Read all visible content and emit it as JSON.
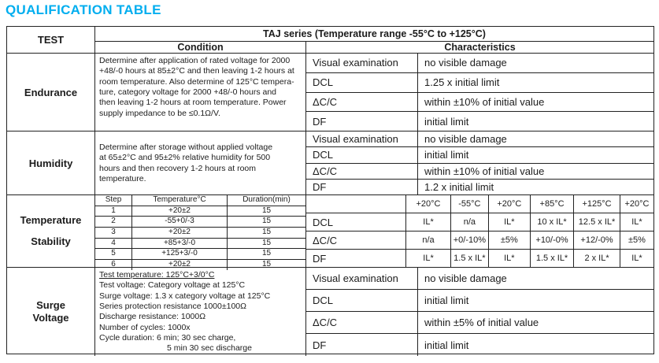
{
  "colors": {
    "accent_title": "#00AEEF",
    "table_border": "#222222"
  },
  "title": "QUALIFICATION TABLE",
  "header": {
    "test": "TEST",
    "series": "TAJ series (Temperature range -55°C to +125°C)",
    "condition": "Condition",
    "characteristics": "Characteristics"
  },
  "endurance": {
    "name": "Endurance",
    "cond": [
      "Determine after application of rated voltage for 2000",
      "+48/-0 hours at 85±2°C and then leaving 1-2 hours at",
      "room temperature. Also determine of 125°C tempera-",
      "ture, category voltage for 2000 +48/-0 hours and",
      "then leaving 1-2 hours at room temperature. Power",
      "supply impedance to be ≤0.1Ω/V."
    ],
    "rows": [
      {
        "label": "Visual examination",
        "value": "no visible damage"
      },
      {
        "label": "DCL",
        "value": "1.25 x initial limit"
      },
      {
        "label": "ΔC/C",
        "value": "within ±10% of initial value"
      },
      {
        "label": "DF",
        "value": "initial limit"
      }
    ]
  },
  "humidity": {
    "name": "Humidity",
    "cond": [
      "Determine after storage without applied voltage",
      "at 65±2°C and 95±2% relative humidity for 500",
      "hours and then recovery 1-2 hours at room",
      "temperature."
    ],
    "rows": [
      {
        "label": "Visual examination",
        "value": "no visible damage"
      },
      {
        "label": "DCL",
        "value": "initial limit"
      },
      {
        "label": "ΔC/C",
        "value": "within ±10% of initial value"
      },
      {
        "label": "DF",
        "value": "1.2 x initial limit"
      }
    ]
  },
  "tempstab": {
    "name_line1": "Temperature",
    "name_line2": "Stability",
    "steps": {
      "headers": [
        "Step",
        "Temperature°C",
        "Duration(min)"
      ],
      "rows": [
        [
          "1",
          "+20±2",
          "15"
        ],
        [
          "2",
          "-55+0/-3",
          "15"
        ],
        [
          "3",
          "+20±2",
          "15"
        ],
        [
          "4",
          "+85+3/-0",
          "15"
        ],
        [
          "5",
          "+125+3/-0",
          "15"
        ],
        [
          "6",
          "+20±2",
          "15"
        ]
      ]
    },
    "grid": {
      "temps": [
        "+20°C",
        "-55°C",
        "+20°C",
        "+85°C",
        "+125°C",
        "+20°C"
      ],
      "rows": [
        {
          "label": "DCL",
          "values": [
            "IL*",
            "n/a",
            "IL*",
            "10 x IL*",
            "12.5 x IL*",
            "IL*"
          ]
        },
        {
          "label": "ΔC/C",
          "values": [
            "n/a",
            "+0/-10%",
            "±5%",
            "+10/-0%",
            "+12/-0%",
            "±5%"
          ]
        },
        {
          "label": "DF",
          "values": [
            "IL*",
            "1.5 x IL*",
            "IL*",
            "1.5 x IL*",
            "2 x IL*",
            "IL*"
          ]
        }
      ]
    }
  },
  "surge": {
    "name_line1": "Surge",
    "name_line2": "Voltage",
    "cond": [
      "Test temperature: 125°C+3/0°C",
      "Test voltage: Category voltage at 125°C",
      "Surge voltage: 1.3 x category voltage at 125°C",
      "Series protection resistance 1000±100Ω",
      "Discharge resistance: 1000Ω",
      "Number of cycles: 1000x",
      "Cycle duration: 6 min; 30 sec charge,",
      "5 min 30 sec discharge"
    ],
    "rows": [
      {
        "label": "Visual examination",
        "value": "no visible damage"
      },
      {
        "label": "DCL",
        "value": "initial limit"
      },
      {
        "label": "ΔC/C",
        "value": "within ±5% of initial value"
      },
      {
        "label": "DF",
        "value": "initial limit"
      }
    ]
  }
}
